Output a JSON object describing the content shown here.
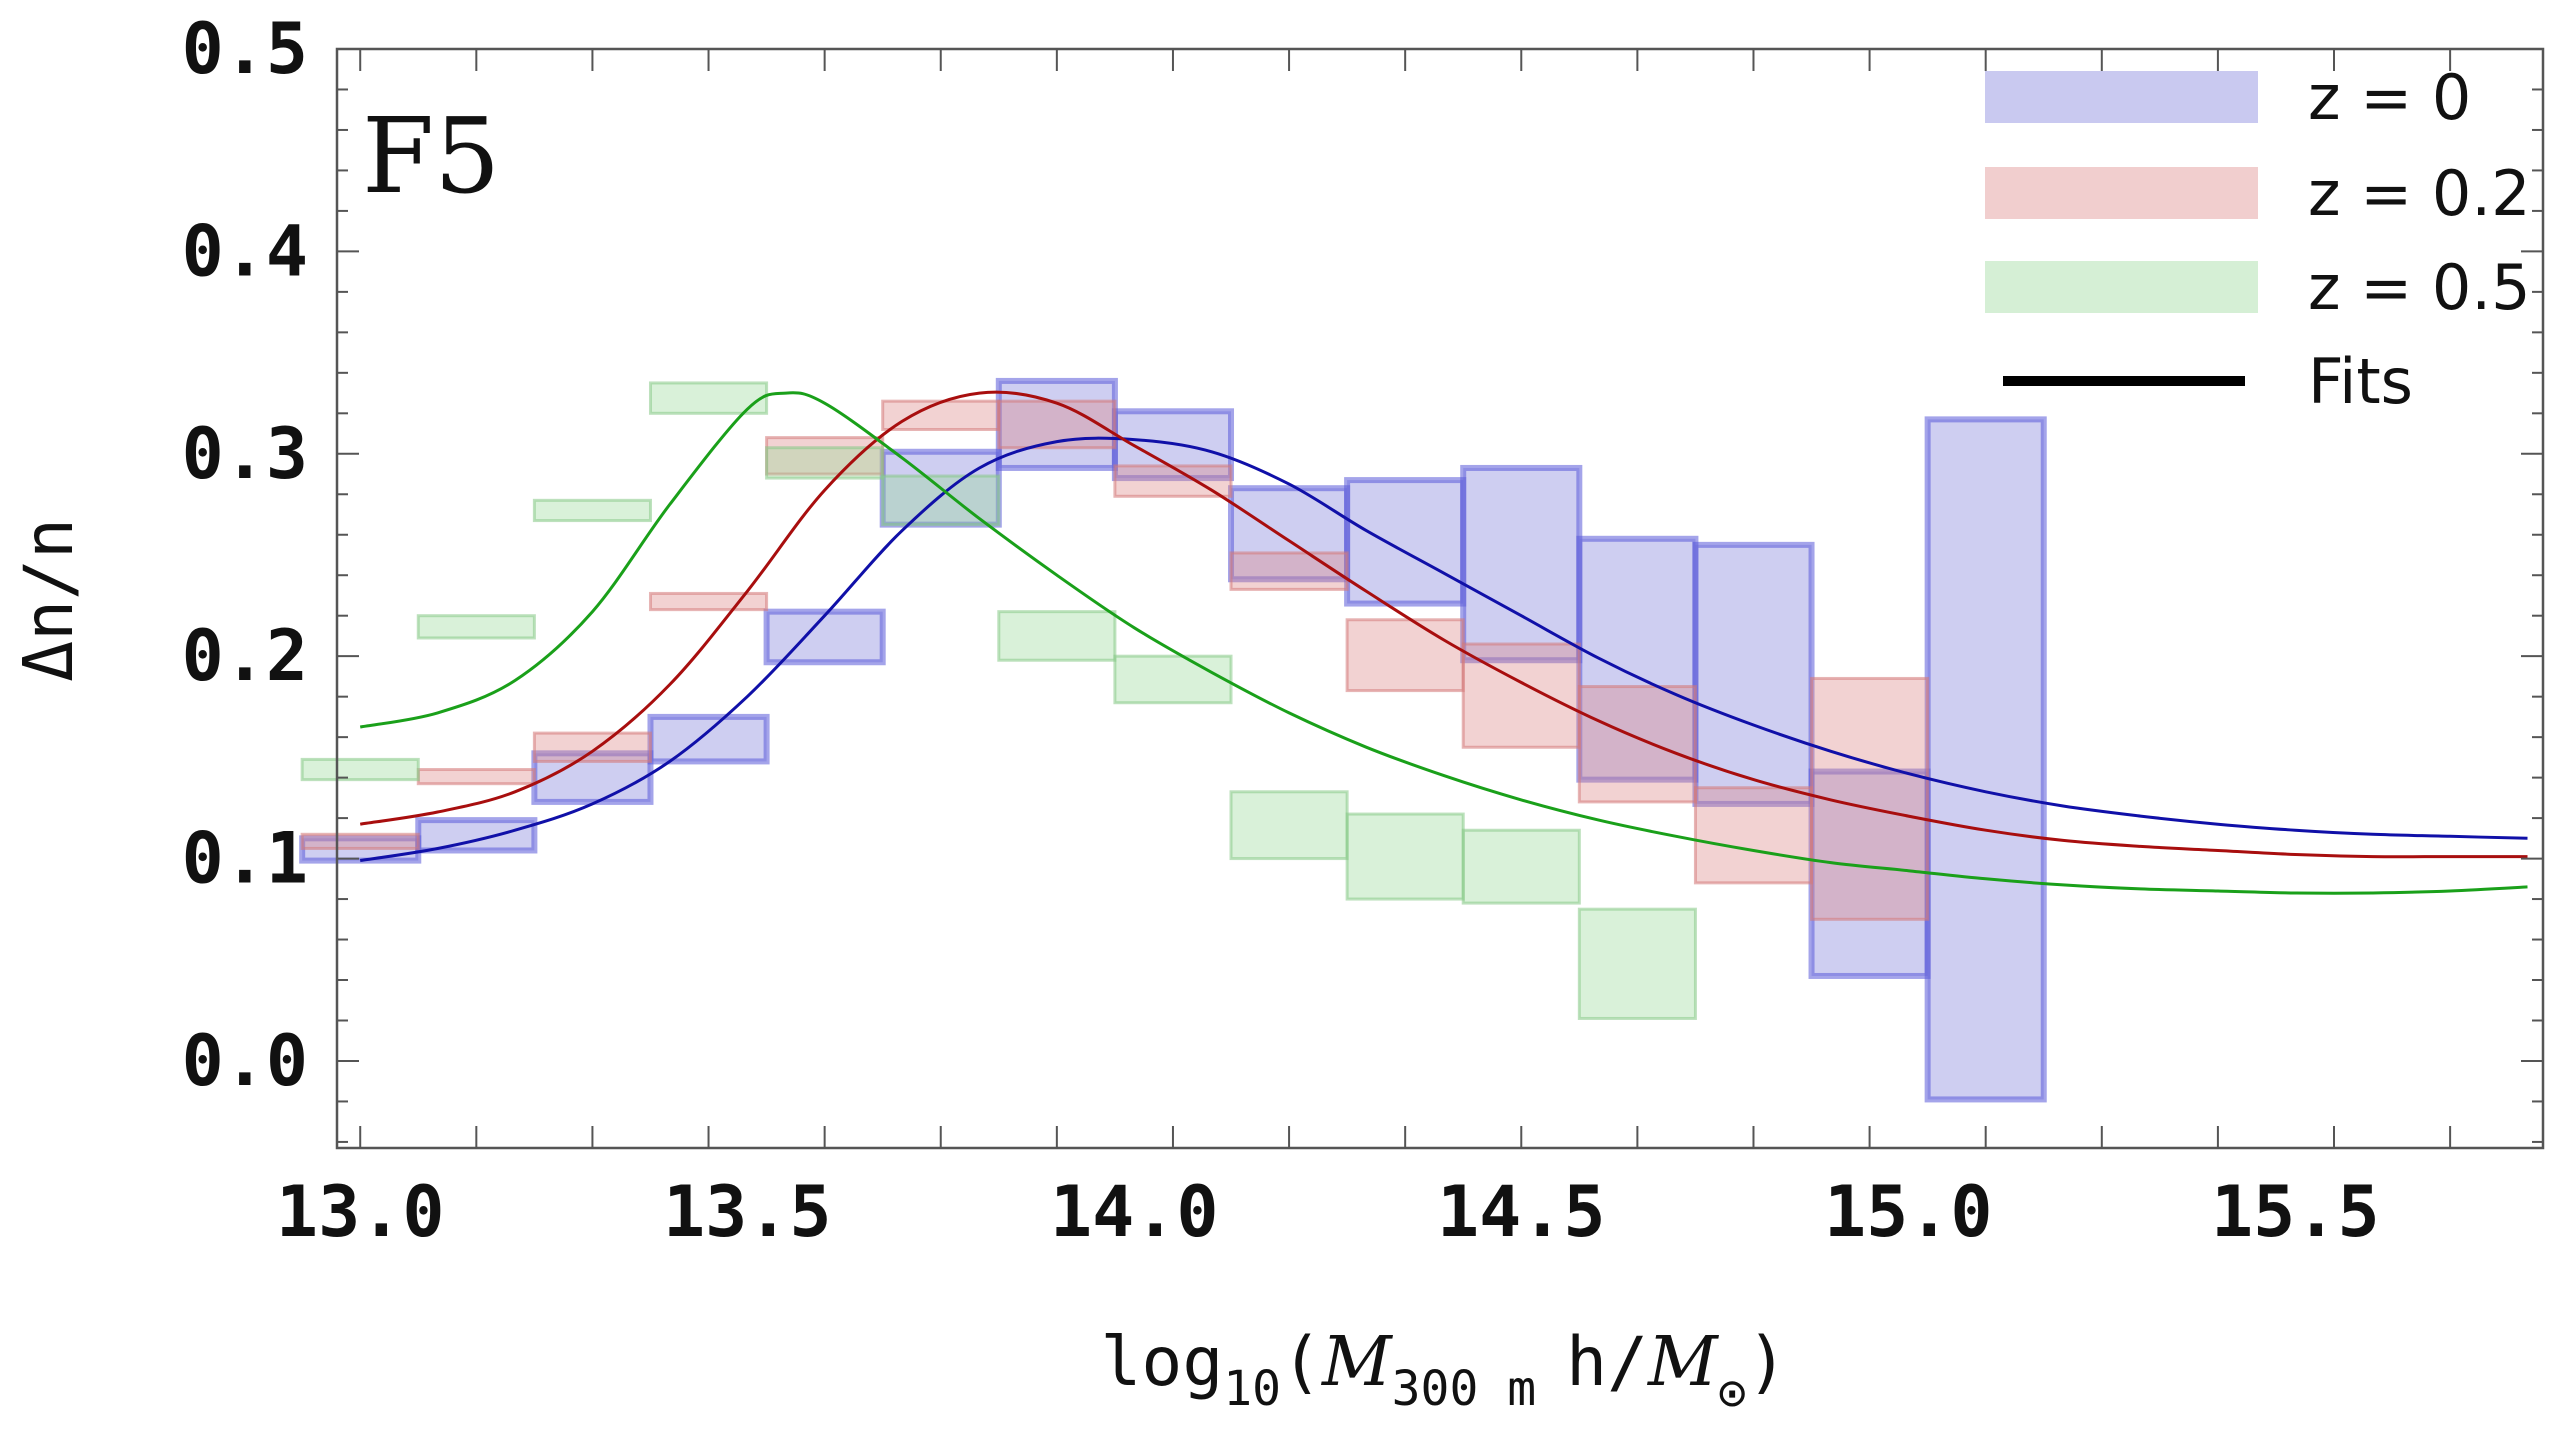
{
  "chart_data": {
    "type": "bar",
    "panel_label": "F5",
    "ylabel": "Δn/n",
    "xlabel": {
      "prefix": "log",
      "prefix_sub": "10",
      "open": "(",
      "mass_symbol": "M",
      "mass_sub": "300 m",
      "h_text": "h/",
      "sun_symbol": "M",
      "sun_sub": "⊙",
      "close": ")"
    },
    "xlim": [
      12.97,
      15.82
    ],
    "ylim": [
      -0.043,
      0.5
    ],
    "x_major_ticks": [
      13.0,
      13.5,
      14.0,
      14.5,
      15.0,
      15.5
    ],
    "x_tick_labels": [
      "13.0",
      "13.5",
      "14.0",
      "14.5",
      "15.0",
      "15.5"
    ],
    "y_major_ticks": [
      0.0,
      0.1,
      0.2,
      0.3,
      0.4,
      0.5
    ],
    "y_tick_labels": [
      "0.0",
      "0.1",
      "0.2",
      "0.3",
      "0.4",
      "0.5"
    ],
    "bin_width": 0.15,
    "legend": [
      {
        "label": "z = 0",
        "kind": "band",
        "series": 0
      },
      {
        "label": "z = 0.2",
        "kind": "band",
        "series": 1
      },
      {
        "label": "z = 0.5",
        "kind": "band",
        "series": 2
      },
      {
        "label": "Fits",
        "kind": "line"
      }
    ],
    "series": [
      {
        "name": "z = 0",
        "fill": "#7f7fdb",
        "stroke": "#5a5ad8",
        "fit_color": "#1010a8",
        "boxes": [
          {
            "x": 13.0,
            "low": 0.099,
            "high": 0.11
          },
          {
            "x": 13.15,
            "low": 0.104,
            "high": 0.119
          },
          {
            "x": 13.3,
            "low": 0.128,
            "high": 0.152
          },
          {
            "x": 13.45,
            "low": 0.148,
            "high": 0.17
          },
          {
            "x": 13.6,
            "low": 0.197,
            "high": 0.222
          },
          {
            "x": 13.75,
            "low": 0.265,
            "high": 0.301
          },
          {
            "x": 13.9,
            "low": 0.293,
            "high": 0.336
          },
          {
            "x": 14.05,
            "low": 0.288,
            "high": 0.321
          },
          {
            "x": 14.2,
            "low": 0.238,
            "high": 0.283
          },
          {
            "x": 14.35,
            "low": 0.226,
            "high": 0.287
          },
          {
            "x": 14.5,
            "low": 0.198,
            "high": 0.293
          },
          {
            "x": 14.65,
            "low": 0.139,
            "high": 0.258
          },
          {
            "x": 14.8,
            "low": 0.127,
            "high": 0.255
          },
          {
            "x": 14.95,
            "low": 0.042,
            "high": 0.143
          },
          {
            "x": 15.1,
            "low": -0.019,
            "high": 0.317
          }
        ],
        "fit": [
          [
            13.0,
            0.099
          ],
          [
            13.1,
            0.105
          ],
          [
            13.2,
            0.114
          ],
          [
            13.3,
            0.127
          ],
          [
            13.4,
            0.148
          ],
          [
            13.5,
            0.18
          ],
          [
            13.6,
            0.22
          ],
          [
            13.7,
            0.262
          ],
          [
            13.8,
            0.293
          ],
          [
            13.9,
            0.306
          ],
          [
            14.0,
            0.307
          ],
          [
            14.1,
            0.301
          ],
          [
            14.2,
            0.285
          ],
          [
            14.3,
            0.262
          ],
          [
            14.4,
            0.241
          ],
          [
            14.5,
            0.22
          ],
          [
            14.6,
            0.199
          ],
          [
            14.7,
            0.181
          ],
          [
            14.8,
            0.166
          ],
          [
            14.9,
            0.153
          ],
          [
            15.0,
            0.142
          ],
          [
            15.1,
            0.133
          ],
          [
            15.2,
            0.126
          ],
          [
            15.3,
            0.121
          ],
          [
            15.4,
            0.117
          ],
          [
            15.5,
            0.114
          ],
          [
            15.6,
            0.112
          ],
          [
            15.7,
            0.111
          ],
          [
            15.8,
            0.11
          ]
        ]
      },
      {
        "name": "z = 0.2",
        "fill": "#dd8a8a",
        "stroke": "#d47878",
        "fit_color": "#a80e0e",
        "boxes": [
          {
            "x": 13.0,
            "low": 0.105,
            "high": 0.112
          },
          {
            "x": 13.15,
            "low": 0.137,
            "high": 0.144
          },
          {
            "x": 13.3,
            "low": 0.148,
            "high": 0.162
          },
          {
            "x": 13.45,
            "low": 0.223,
            "high": 0.231
          },
          {
            "x": 13.6,
            "low": 0.29,
            "high": 0.308
          },
          {
            "x": 13.75,
            "low": 0.312,
            "high": 0.326
          },
          {
            "x": 13.9,
            "low": 0.303,
            "high": 0.326
          },
          {
            "x": 14.05,
            "low": 0.279,
            "high": 0.294
          },
          {
            "x": 14.2,
            "low": 0.233,
            "high": 0.251
          },
          {
            "x": 14.35,
            "low": 0.183,
            "high": 0.218
          },
          {
            "x": 14.5,
            "low": 0.155,
            "high": 0.206
          },
          {
            "x": 14.65,
            "low": 0.128,
            "high": 0.185
          },
          {
            "x": 14.8,
            "low": 0.088,
            "high": 0.135
          },
          {
            "x": 14.95,
            "low": 0.07,
            "high": 0.189
          }
        ],
        "fit": [
          [
            13.0,
            0.117
          ],
          [
            13.1,
            0.123
          ],
          [
            13.2,
            0.133
          ],
          [
            13.3,
            0.153
          ],
          [
            13.4,
            0.186
          ],
          [
            13.5,
            0.232
          ],
          [
            13.6,
            0.282
          ],
          [
            13.7,
            0.316
          ],
          [
            13.8,
            0.33
          ],
          [
            13.9,
            0.325
          ],
          [
            14.0,
            0.304
          ],
          [
            14.1,
            0.282
          ],
          [
            14.2,
            0.257
          ],
          [
            14.3,
            0.232
          ],
          [
            14.4,
            0.208
          ],
          [
            14.5,
            0.187
          ],
          [
            14.6,
            0.168
          ],
          [
            14.7,
            0.152
          ],
          [
            14.8,
            0.139
          ],
          [
            14.9,
            0.129
          ],
          [
            15.0,
            0.121
          ],
          [
            15.1,
            0.114
          ],
          [
            15.2,
            0.109
          ],
          [
            15.3,
            0.106
          ],
          [
            15.4,
            0.104
          ],
          [
            15.5,
            0.102
          ],
          [
            15.6,
            0.101
          ],
          [
            15.7,
            0.101
          ],
          [
            15.8,
            0.101
          ]
        ]
      },
      {
        "name": "z = 0.5",
        "fill": "#9bd99b",
        "stroke": "#86c986",
        "fit_color": "#1aa01a",
        "boxes": [
          {
            "x": 13.0,
            "low": 0.139,
            "high": 0.149
          },
          {
            "x": 13.15,
            "low": 0.209,
            "high": 0.22
          },
          {
            "x": 13.3,
            "low": 0.267,
            "high": 0.277
          },
          {
            "x": 13.45,
            "low": 0.32,
            "high": 0.335
          },
          {
            "x": 13.6,
            "low": 0.288,
            "high": 0.303
          },
          {
            "x": 13.75,
            "low": 0.265,
            "high": 0.289
          },
          {
            "x": 13.9,
            "low": 0.198,
            "high": 0.222
          },
          {
            "x": 14.05,
            "low": 0.177,
            "high": 0.2
          },
          {
            "x": 14.2,
            "low": 0.1,
            "high": 0.133
          },
          {
            "x": 14.35,
            "low": 0.08,
            "high": 0.122
          },
          {
            "x": 14.5,
            "low": 0.078,
            "high": 0.114
          },
          {
            "x": 14.65,
            "low": 0.021,
            "high": 0.075
          }
        ],
        "fit": [
          [
            13.0,
            0.165
          ],
          [
            13.1,
            0.172
          ],
          [
            13.2,
            0.188
          ],
          [
            13.3,
            0.222
          ],
          [
            13.4,
            0.275
          ],
          [
            13.5,
            0.322
          ],
          [
            13.55,
            0.33
          ],
          [
            13.6,
            0.325
          ],
          [
            13.7,
            0.298
          ],
          [
            13.8,
            0.268
          ],
          [
            13.9,
            0.24
          ],
          [
            14.0,
            0.214
          ],
          [
            14.1,
            0.192
          ],
          [
            14.2,
            0.172
          ],
          [
            14.3,
            0.155
          ],
          [
            14.4,
            0.141
          ],
          [
            14.5,
            0.129
          ],
          [
            14.6,
            0.119
          ],
          [
            14.7,
            0.111
          ],
          [
            14.8,
            0.104
          ],
          [
            14.9,
            0.098
          ],
          [
            15.0,
            0.094
          ],
          [
            15.1,
            0.09
          ],
          [
            15.2,
            0.087
          ],
          [
            15.3,
            0.085
          ],
          [
            15.4,
            0.084
          ],
          [
            15.5,
            0.083
          ],
          [
            15.6,
            0.083
          ],
          [
            15.7,
            0.084
          ],
          [
            15.8,
            0.086
          ]
        ]
      }
    ]
  }
}
